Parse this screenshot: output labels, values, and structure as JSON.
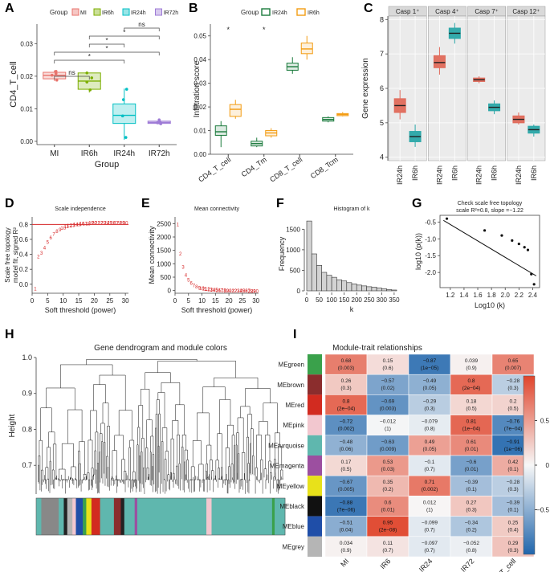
{
  "panels": {
    "A": "A",
    "B": "B",
    "C": "C",
    "D": "D",
    "E": "E",
    "F": "F",
    "G": "G",
    "H": "H",
    "I": "I"
  },
  "chart_data": [
    {
      "id": "A",
      "type": "box",
      "legend_title": "Group",
      "categories": [
        "MI",
        "IR6h",
        "IR24h",
        "IR72h"
      ],
      "colors": [
        "#e8736c",
        "#7cae00",
        "#00bfc4",
        "#9e7bd6"
      ],
      "boxes": [
        {
          "min": 0.0185,
          "q1": 0.0192,
          "median": 0.0203,
          "q3": 0.0212,
          "max": 0.0218,
          "points": [
            0.0188,
            0.0203,
            0.0208,
            0.0215
          ]
        },
        {
          "min": 0.015,
          "q1": 0.016,
          "median": 0.0185,
          "q3": 0.021,
          "max": 0.021,
          "points": [
            0.0158,
            0.0182,
            0.0195,
            0.021
          ]
        },
        {
          "min": 0.0005,
          "q1": 0.0055,
          "median": 0.008,
          "q3": 0.0115,
          "max": 0.0162,
          "points": [
            0.0012,
            0.0078,
            0.0128,
            0.016
          ]
        },
        {
          "min": 0.0052,
          "q1": 0.0055,
          "median": 0.0058,
          "q3": 0.0062,
          "max": 0.0068,
          "points": [
            0.0054,
            0.0057,
            0.006,
            0.0066
          ]
        }
      ],
      "ylabel": "CD4_T_cell",
      "xlabel": "Group",
      "ylim": [
        -0.001,
        0.036
      ],
      "yticks": [
        "0.00",
        "0.01",
        "0.02",
        "0.03"
      ],
      "comparisons": [
        {
          "a": 0,
          "b": 1,
          "label": "ns"
        },
        {
          "a": 0,
          "b": 2,
          "label": "*"
        },
        {
          "a": 0,
          "b": 3,
          "label": "*"
        },
        {
          "a": 1,
          "b": 2,
          "label": "*"
        },
        {
          "a": 1,
          "b": 3,
          "label": "*"
        },
        {
          "a": 2,
          "b": 3,
          "label": "ns"
        }
      ]
    },
    {
      "id": "B",
      "type": "box",
      "legend_title": "Group",
      "series": [
        {
          "name": "IR24h",
          "color": "#1a7a3c"
        },
        {
          "name": "IR6h",
          "color": "#f39c12"
        }
      ],
      "categories": [
        "CD4_T_cell",
        "CD4_Tm",
        "CD8_T_cell",
        "CD8_Tcm"
      ],
      "boxes": [
        [
          {
            "min": 0.003,
            "q1": 0.008,
            "median": 0.0095,
            "q3": 0.012,
            "max": 0.014
          },
          {
            "min": 0.015,
            "q1": 0.016,
            "median": 0.019,
            "q3": 0.021,
            "max": 0.023
          }
        ],
        [
          {
            "min": 0.003,
            "q1": 0.0035,
            "median": 0.0045,
            "q3": 0.0055,
            "max": 0.007
          },
          {
            "min": 0.007,
            "q1": 0.0078,
            "median": 0.009,
            "q3": 0.01,
            "max": 0.011
          }
        ],
        [
          {
            "min": 0.034,
            "q1": 0.0355,
            "median": 0.037,
            "q3": 0.0385,
            "max": 0.041
          },
          {
            "min": 0.04,
            "q1": 0.0425,
            "median": 0.0445,
            "q3": 0.047,
            "max": 0.05
          }
        ],
        [
          {
            "min": 0.0135,
            "q1": 0.014,
            "median": 0.0147,
            "q3": 0.0155,
            "max": 0.016
          },
          {
            "min": 0.016,
            "q1": 0.0163,
            "median": 0.0168,
            "q3": 0.0172,
            "max": 0.0178
          }
        ]
      ],
      "significance": [
        "*",
        "*",
        "",
        ""
      ],
      "ylabel": "Infiltration score",
      "ylim": [
        0,
        0.055
      ],
      "yticks": [
        "0.00",
        "0.01",
        "0.02",
        "0.03",
        "0.04",
        "0.05"
      ]
    },
    {
      "id": "C",
      "type": "box",
      "facets": [
        "Casp 1⁺",
        "Casp 4⁺",
        "Casp 7⁺",
        "Casp 12⁺"
      ],
      "xcategories": [
        "IR24h",
        "IR6h"
      ],
      "colors": [
        "#e06a5a",
        "#2aa7a8"
      ],
      "boxes": [
        [
          {
            "min": 5.1,
            "q1": 5.3,
            "median": 5.5,
            "q3": 5.7,
            "max": 5.95
          },
          {
            "min": 4.3,
            "q1": 4.45,
            "median": 4.6,
            "q3": 4.75,
            "max": 4.95
          }
        ],
        [
          {
            "min": 6.4,
            "q1": 6.6,
            "median": 6.75,
            "q3": 6.95,
            "max": 7.2
          },
          {
            "min": 7.3,
            "q1": 7.45,
            "median": 7.6,
            "q3": 7.75,
            "max": 7.9
          }
        ],
        [
          {
            "min": 6.15,
            "q1": 6.2,
            "median": 6.25,
            "q3": 6.3,
            "max": 6.35
          },
          {
            "min": 5.25,
            "q1": 5.35,
            "median": 5.45,
            "q3": 5.55,
            "max": 5.65
          }
        ],
        [
          {
            "min": 4.95,
            "q1": 5.0,
            "median": 5.1,
            "q3": 5.2,
            "max": 5.3
          },
          {
            "min": 4.6,
            "q1": 4.7,
            "median": 4.8,
            "q3": 4.9,
            "max": 4.95
          }
        ]
      ],
      "ylabel": "Gene expression",
      "ylim": [
        3.9,
        8.1
      ],
      "yticks": [
        "4",
        "5",
        "6",
        "7",
        "8"
      ]
    },
    {
      "id": "D",
      "type": "scatter",
      "title": "Scale independence",
      "x": [
        1,
        2,
        3,
        4,
        5,
        6,
        7,
        8,
        9,
        10,
        11,
        12,
        13,
        14,
        15,
        16,
        17,
        18,
        19,
        20,
        21,
        22,
        23,
        24,
        25,
        26,
        27,
        28,
        29,
        30
      ],
      "y": [
        -0.05,
        0.38,
        0.43,
        0.5,
        0.57,
        0.63,
        0.68,
        0.72,
        0.74,
        0.76,
        0.78,
        0.79,
        0.8,
        0.81,
        0.81,
        0.82,
        0.82,
        0.82,
        0.83,
        0.83,
        0.83,
        0.83,
        0.83,
        0.83,
        0.83,
        0.83,
        0.83,
        0.83,
        0.83,
        0.83
      ],
      "point_labels": [
        "1",
        "2",
        "3",
        "4",
        "5",
        "6",
        "7",
        "8",
        "9",
        "10",
        "11",
        "12",
        "13",
        "14",
        "15",
        "16",
        "17",
        "18",
        "19",
        "20",
        "21",
        "22",
        "23",
        "24",
        "25",
        "26",
        "27",
        "28",
        "29",
        "30"
      ],
      "hline": 0.8,
      "xlabel": "Soft threshold (power)",
      "ylabel_lines": [
        "Scale free topology",
        "model fit, signed R²"
      ],
      "xlim": [
        0,
        31
      ],
      "ylim": [
        -0.12,
        0.9
      ],
      "xticks": [
        "0",
        "5",
        "10",
        "15",
        "20",
        "25",
        "30"
      ],
      "yticks": [
        "0.0",
        "0.2",
        "0.4",
        "0.6",
        "0.8"
      ]
    },
    {
      "id": "E",
      "type": "scatter",
      "title": "Mean connectivity",
      "x": [
        1,
        2,
        3,
        4,
        5,
        6,
        7,
        8,
        9,
        10,
        11,
        12,
        13,
        14,
        15,
        16,
        17,
        18,
        19,
        20,
        21,
        22,
        23,
        24,
        25,
        26,
        27,
        28,
        29,
        30
      ],
      "y": [
        2500,
        1400,
        900,
        600,
        420,
        300,
        220,
        170,
        130,
        110,
        90,
        75,
        62,
        52,
        45,
        40,
        35,
        30,
        27,
        24,
        22,
        20,
        18,
        16,
        15,
        14,
        13,
        12,
        11,
        10
      ],
      "point_labels": [
        "1",
        "2",
        "3",
        "4",
        "5",
        "6",
        "7",
        "8",
        "9",
        "10",
        "11",
        "12",
        "13",
        "14",
        "15",
        "16",
        "17",
        "18",
        "19",
        "20",
        "21",
        "22",
        "23",
        "24",
        "25",
        "26",
        "27",
        "28",
        "29",
        "30"
      ],
      "xlabel": "Soft threshold (power)",
      "ylabel": "Mean connectivity",
      "xlim": [
        0,
        31
      ],
      "ylim": [
        -100,
        2750
      ],
      "xticks": [
        "0",
        "5",
        "10",
        "15",
        "20",
        "25",
        "30"
      ],
      "yticks": [
        "0",
        "500",
        "1000",
        "1500",
        "2000",
        "2500"
      ]
    },
    {
      "id": "F",
      "type": "histogram",
      "title": "Histogram of k",
      "bin_edges": [
        0,
        20,
        40,
        60,
        80,
        100,
        120,
        140,
        160,
        180,
        200,
        220,
        240,
        260,
        280,
        300,
        320,
        340,
        360
      ],
      "counts": [
        1700,
        900,
        620,
        450,
        380,
        330,
        270,
        240,
        200,
        170,
        140,
        120,
        100,
        90,
        70,
        50,
        30,
        20
      ],
      "xlabel": "k",
      "ylabel": "Frequency",
      "xlim": [
        0,
        360
      ],
      "ylim": [
        0,
        1800
      ],
      "xticks": [
        "0",
        "50",
        "100",
        "150",
        "200",
        "250",
        "300",
        "350"
      ],
      "yticks": [
        "0",
        "500",
        "1000",
        "1500"
      ]
    },
    {
      "id": "G",
      "type": "scatter",
      "title_lines": [
        "Check scale free topology",
        "scale R²=0.8, slope =−1.22"
      ],
      "x": [
        1.15,
        1.7,
        1.95,
        2.1,
        2.2,
        2.28,
        2.33,
        2.38,
        2.42
      ],
      "y": [
        -0.4,
        -0.75,
        -0.9,
        -1.05,
        -1.15,
        -1.25,
        -1.33,
        -2.05,
        -2.35
      ],
      "fit": {
        "x1": 1.1,
        "y1": -0.45,
        "x2": 2.45,
        "y2": -2.1
      },
      "xlabel": "Log10 (k)",
      "ylabel": "log10 (p(k))",
      "xlim": [
        1.05,
        2.5
      ],
      "ylim": [
        -2.45,
        -0.3
      ],
      "xticks": [
        "1.2",
        "1.4",
        "1.6",
        "1.8",
        "2.0",
        "2.2",
        "2.4"
      ],
      "yticks": [
        "-2.0",
        "-1.5",
        "-1.0",
        "-0.5"
      ]
    },
    {
      "id": "H",
      "type": "dendrogram",
      "title": "Gene dendrogram and module colors",
      "ylabel": "Height",
      "ylim": [
        0.62,
        1.0
      ],
      "yticks": [
        "0.7",
        "0.8",
        "0.9",
        "1.0"
      ],
      "module_colors": [
        "#5fb7ae",
        "#888",
        "#5fb7ae",
        "#222",
        "#b5b5b5",
        "#f2c7cf",
        "#1f4ea8",
        "#3aa14b",
        "#e8e11a",
        "#d22b20",
        "#5fb7ae",
        "#8b2d2d",
        "#222",
        "#5fb7ae",
        "#9c4fa0",
        "#5fb7ae",
        "#f2c7cf",
        "#5fb7ae",
        "#3aa14b",
        "#5fb7ae"
      ],
      "module_widths": [
        6,
        20,
        6,
        4,
        6,
        4,
        8,
        4,
        6,
        10,
        16,
        8,
        4,
        12,
        3,
        80,
        6,
        70,
        3,
        12
      ]
    },
    {
      "id": "I",
      "type": "heatmap",
      "title": "Module-trait relationships",
      "rows": [
        "MEgreen",
        "MEbrown",
        "MEred",
        "MEpink",
        "MEturquoise",
        "MEmagenta",
        "MEyellow",
        "MEblack",
        "MEblue",
        "MEgrey"
      ],
      "row_colors": [
        "#3aa14b",
        "#8b2d2d",
        "#d22b20",
        "#f2c7cf",
        "#5fb7ae",
        "#9c4fa0",
        "#e8e11a",
        "#111111",
        "#1f4ea8",
        "#b5b5b5"
      ],
      "cols": [
        "MI",
        "IR6",
        "IR24",
        "IR72",
        "CD4_T_cell"
      ],
      "values": [
        [
          0.68,
          0.15,
          -0.87,
          0.039,
          0.65
        ],
        [
          0.26,
          -0.57,
          -0.49,
          0.8,
          -0.28
        ],
        [
          0.8,
          -0.69,
          -0.29,
          0.18,
          0.2
        ],
        [
          -0.72,
          -0.012,
          -0.079,
          0.81,
          -0.76
        ],
        [
          -0.48,
          -0.63,
          0.49,
          0.61,
          -0.91
        ],
        [
          0.17,
          0.53,
          -0.1,
          -0.6,
          0.42
        ],
        [
          -0.67,
          0.35,
          0.71,
          -0.39,
          -0.28
        ],
        [
          -0.88,
          0.6,
          0.012,
          0.27,
          -0.39
        ],
        [
          -0.51,
          0.95,
          -0.099,
          -0.34,
          0.25
        ],
        [
          0.034,
          0.11,
          -0.097,
          -0.052,
          0.29
        ]
      ],
      "pvalues": [
        [
          "(0.003)",
          "(0.6)",
          "(1e−05)",
          "(0.9)",
          "(0.007)"
        ],
        [
          "(0.3)",
          "(0.02)",
          "(0.05)",
          "(2e−04)",
          "(0.3)"
        ],
        [
          "(2e−04)",
          "(0.003)",
          "(0.3)",
          "(0.5)",
          "(0.5)"
        ],
        [
          "(0.002)",
          "(1)",
          "(0.8)",
          "(1e−04)",
          "(7e−04)"
        ],
        [
          "(0.06)",
          "(0.009)",
          "(0.05)",
          "(0.01)",
          "(1e−06)"
        ],
        [
          "(0.5)",
          "(0.03)",
          "(0.7)",
          "(0.01)",
          "(0.1)"
        ],
        [
          "(0.005)",
          "(0.2)",
          "(0.002)",
          "(0.1)",
          "(0.3)"
        ],
        [
          "(7e−06)",
          "(0.01)",
          "(1)",
          "(0.3)",
          "(0.1)"
        ],
        [
          "(0.04)",
          "(2e−08)",
          "(0.7)",
          "(0.2)",
          "(0.4)"
        ],
        [
          "(0.9)",
          "(0.7)",
          "(0.7)",
          "(0.8)",
          "(0.3)"
        ]
      ],
      "legend_ticks": [
        "0.5",
        "0",
        "−0.5"
      ],
      "scale_colors": {
        "low": "#2166ac",
        "mid": "#f7f7f7",
        "high": "#e0452c"
      }
    }
  ]
}
